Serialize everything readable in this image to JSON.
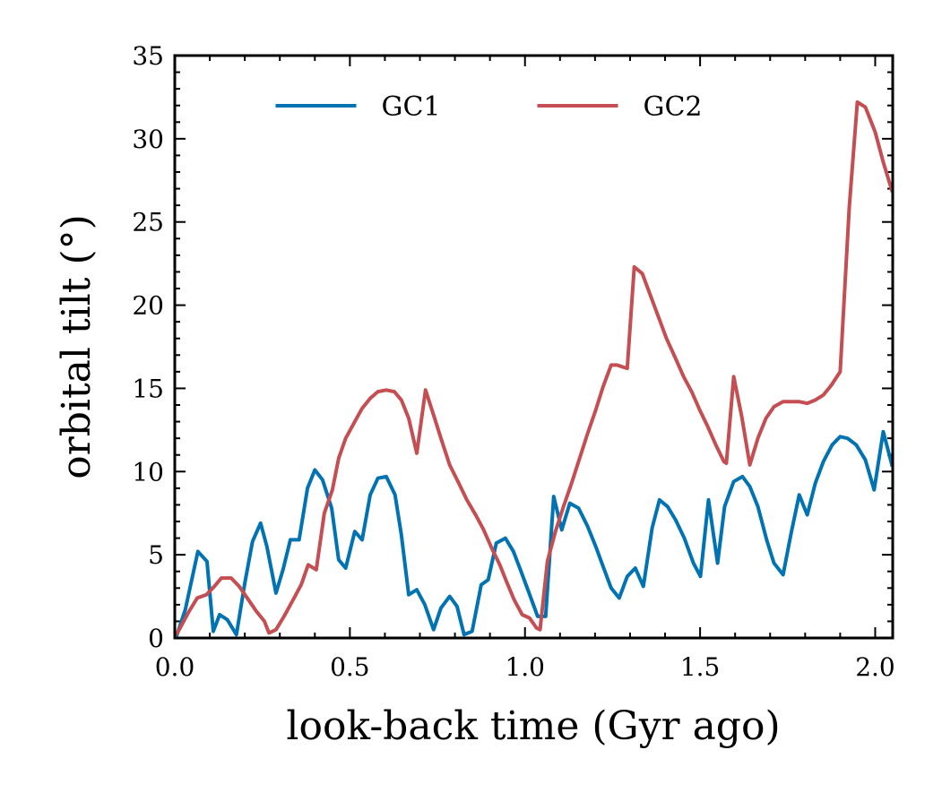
{
  "chart_data": {
    "type": "line",
    "xlabel": "look-back time (Gyr ago)",
    "ylabel": "orbital tilt (°)",
    "xlim": [
      0,
      2.05
    ],
    "ylim": [
      0,
      35
    ],
    "xticks": [
      {
        "value": 0,
        "label": "0.0"
      },
      0.5,
      {
        "value": 1,
        "label": "1.0"
      },
      1.5,
      {
        "value": 2,
        "label": "2.0"
      }
    ],
    "yticks": [
      0,
      5,
      10,
      15,
      20,
      25,
      30,
      35
    ],
    "legend": "upper center",
    "series": [
      {
        "name": "GC1",
        "color": "#0173b2",
        "x": [
          0.005,
          0.03,
          0.066,
          0.092,
          0.11,
          0.128,
          0.15,
          0.176,
          0.2,
          0.222,
          0.245,
          0.263,
          0.289,
          0.309,
          0.33,
          0.355,
          0.379,
          0.4,
          0.422,
          0.448,
          0.468,
          0.488,
          0.514,
          0.535,
          0.558,
          0.58,
          0.604,
          0.629,
          0.647,
          0.668,
          0.691,
          0.714,
          0.739,
          0.76,
          0.785,
          0.806,
          0.826,
          0.849,
          0.875,
          0.895,
          0.918,
          0.944,
          0.967,
          0.987,
          1.01,
          1.036,
          1.059,
          1.082,
          1.105,
          1.128,
          1.153,
          1.179,
          1.202,
          1.223,
          1.246,
          1.269,
          1.292,
          1.315,
          1.338,
          1.363,
          1.384,
          1.407,
          1.43,
          1.455,
          1.481,
          1.501,
          1.524,
          1.55,
          1.57,
          1.596,
          1.621,
          1.642,
          1.665,
          1.69,
          1.711,
          1.737,
          1.76,
          1.783,
          1.806,
          1.829,
          1.852,
          1.877,
          1.9,
          1.921,
          1.946,
          1.972,
          1.997,
          2.023,
          2.049
        ],
        "values": [
          0.1,
          1.7,
          5.2,
          4.6,
          0.4,
          1.4,
          1.1,
          0.2,
          3.3,
          5.8,
          6.9,
          5.5,
          2.7,
          4.1,
          5.9,
          5.9,
          9.0,
          10.1,
          9.5,
          7.8,
          4.7,
          4.2,
          6.4,
          5.9,
          8.6,
          9.6,
          9.7,
          8.6,
          6.2,
          2.6,
          2.9,
          2.0,
          0.5,
          1.8,
          2.5,
          1.9,
          0.2,
          0.4,
          3.2,
          3.5,
          5.7,
          6.0,
          5.2,
          4.1,
          2.8,
          1.3,
          1.3,
          8.5,
          6.5,
          8.1,
          7.8,
          6.7,
          5.5,
          4.3,
          3.0,
          2.4,
          3.7,
          4.2,
          3.1,
          6.6,
          8.3,
          7.9,
          7.1,
          6.0,
          4.5,
          3.7,
          8.3,
          4.5,
          7.9,
          9.4,
          9.7,
          9.1,
          7.9,
          5.9,
          4.5,
          3.8,
          6.3,
          8.6,
          7.4,
          9.3,
          10.6,
          11.6,
          12.1,
          12.0,
          11.6,
          10.7,
          8.9,
          12.4,
          10.3
        ]
      },
      {
        "name": "GC2",
        "color": "#c44e52",
        "x": [
          0.005,
          0.038,
          0.064,
          0.09,
          0.113,
          0.133,
          0.161,
          0.184,
          0.207,
          0.233,
          0.256,
          0.269,
          0.289,
          0.312,
          0.338,
          0.361,
          0.381,
          0.404,
          0.427,
          0.45,
          0.468,
          0.488,
          0.514,
          0.535,
          0.558,
          0.58,
          0.604,
          0.627,
          0.647,
          0.668,
          0.691,
          0.716,
          0.739,
          0.76,
          0.785,
          0.811,
          0.834,
          0.859,
          0.882,
          0.905,
          0.928,
          0.949,
          0.969,
          0.992,
          1.013,
          1.033,
          1.043,
          1.064,
          1.087,
          1.11,
          1.133,
          1.156,
          1.179,
          1.202,
          1.223,
          1.246,
          1.263,
          1.292,
          1.312,
          1.335,
          1.358,
          1.381,
          1.404,
          1.43,
          1.453,
          1.476,
          1.499,
          1.522,
          1.545,
          1.568,
          1.575,
          1.596,
          1.619,
          1.642,
          1.665,
          1.688,
          1.711,
          1.737,
          1.76,
          1.783,
          1.806,
          1.829,
          1.852,
          1.875,
          1.9,
          1.926,
          1.949,
          1.972,
          2.0,
          2.023,
          2.049
        ],
        "values": [
          0.2,
          1.5,
          2.4,
          2.6,
          3.1,
          3.6,
          3.6,
          3.1,
          2.4,
          1.6,
          1.0,
          0.3,
          0.5,
          1.3,
          2.3,
          3.2,
          4.4,
          4.1,
          7.5,
          8.9,
          10.8,
          12.0,
          13.0,
          13.8,
          14.4,
          14.8,
          14.9,
          14.8,
          14.3,
          13.2,
          11.1,
          14.9,
          13.4,
          12.0,
          10.4,
          9.3,
          8.3,
          7.4,
          6.5,
          5.4,
          4.4,
          3.3,
          2.3,
          1.4,
          1.2,
          0.6,
          0.5,
          4.6,
          6.4,
          7.9,
          9.3,
          10.8,
          12.3,
          13.7,
          15.1,
          16.4,
          16.4,
          16.2,
          22.3,
          21.9,
          20.6,
          19.3,
          18.0,
          16.8,
          15.7,
          14.8,
          13.7,
          12.7,
          11.6,
          10.6,
          10.5,
          15.7,
          13.3,
          10.4,
          12.0,
          13.2,
          13.9,
          14.2,
          14.2,
          14.2,
          14.1,
          14.3,
          14.6,
          15.2,
          16.0,
          25.9,
          32.2,
          31.9,
          30.4,
          28.6,
          26.8
        ]
      }
    ]
  }
}
